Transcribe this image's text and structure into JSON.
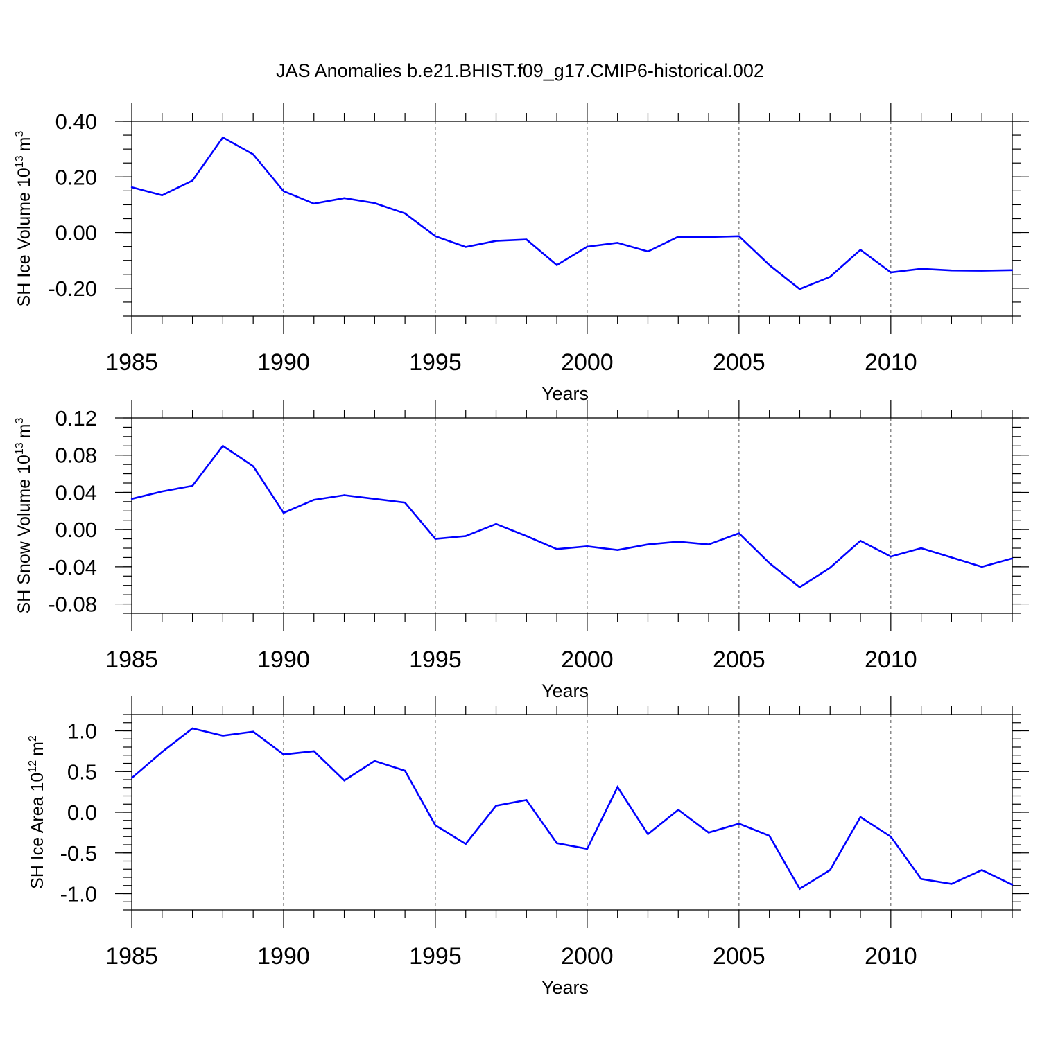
{
  "title": "JAS Anomalies b.e21.BHIST.f09_g17.CMIP6-historical.002",
  "colors": {
    "line": "#0000ff",
    "axis": "#000000",
    "grid": "#555555"
  },
  "chart_data": [
    {
      "type": "line",
      "title": "",
      "ylabel_main": "SH Ice Volume 10",
      "ylabel_exp": "13",
      "ylabel_unit": "m",
      "ylabel_unit_exp": "3",
      "xlabel": "Years",
      "xlim": [
        1985,
        2014
      ],
      "ylim": [
        -0.3,
        0.4
      ],
      "yticks": [
        -0.2,
        0.0,
        0.2,
        0.4
      ],
      "ytick_labels": [
        "-0.20",
        "0.00",
        "0.20",
        "0.40"
      ],
      "yminor_step": 0.05,
      "xticks": [
        1985,
        1990,
        1995,
        2000,
        2005,
        2010
      ],
      "xtick_labels": [
        "1985",
        "1990",
        "1995",
        "2000",
        "2005",
        "2010"
      ],
      "grid_x": [
        1990,
        1995,
        2000,
        2005,
        2010
      ],
      "series": [
        {
          "name": "SH Ice Volume",
          "x": [
            1985,
            1986,
            1987,
            1988,
            1989,
            1990,
            1991,
            1992,
            1993,
            1994,
            1995,
            1996,
            1997,
            1998,
            1999,
            2000,
            2001,
            2002,
            2003,
            2004,
            2005,
            2006,
            2007,
            2008,
            2009,
            2010,
            2011,
            2012,
            2013,
            2014
          ],
          "values": [
            0.163,
            0.134,
            0.187,
            0.342,
            0.281,
            0.149,
            0.104,
            0.124,
            0.106,
            0.069,
            -0.013,
            -0.052,
            -0.03,
            -0.025,
            -0.117,
            -0.051,
            -0.037,
            -0.068,
            -0.015,
            -0.016,
            -0.013,
            -0.117,
            -0.203,
            -0.159,
            -0.062,
            -0.143,
            -0.13,
            -0.136,
            -0.137,
            -0.135
          ]
        }
      ]
    },
    {
      "type": "line",
      "title": "",
      "ylabel_main": "SH Snow Volume 10",
      "ylabel_exp": "13",
      "ylabel_unit": "m",
      "ylabel_unit_exp": "3",
      "xlabel": "Years",
      "xlim": [
        1985,
        2014
      ],
      "ylim": [
        -0.09,
        0.12
      ],
      "yticks": [
        -0.08,
        -0.04,
        0.0,
        0.04,
        0.08,
        0.12
      ],
      "ytick_labels": [
        "-0.08",
        "-0.04",
        "0.00",
        "0.04",
        "0.08",
        "0.12"
      ],
      "yminor_step": 0.01,
      "xticks": [
        1985,
        1990,
        1995,
        2000,
        2005,
        2010
      ],
      "xtick_labels": [
        "1985",
        "1990",
        "1995",
        "2000",
        "2005",
        "2010"
      ],
      "grid_x": [
        1990,
        1995,
        2000,
        2005,
        2010
      ],
      "series": [
        {
          "name": "SH Snow Volume",
          "x": [
            1985,
            1986,
            1987,
            1988,
            1989,
            1990,
            1991,
            1992,
            1993,
            1994,
            1995,
            1996,
            1997,
            1998,
            1999,
            2000,
            2001,
            2002,
            2003,
            2004,
            2005,
            2006,
            2007,
            2008,
            2009,
            2010,
            2011,
            2012,
            2013,
            2014
          ],
          "values": [
            0.033,
            0.041,
            0.047,
            0.09,
            0.068,
            0.018,
            0.032,
            0.037,
            0.033,
            0.029,
            -0.01,
            -0.007,
            0.006,
            -0.007,
            -0.021,
            -0.018,
            -0.022,
            -0.016,
            -0.013,
            -0.016,
            -0.004,
            -0.036,
            -0.062,
            -0.041,
            -0.012,
            -0.029,
            -0.02,
            -0.03,
            -0.04,
            -0.031
          ]
        }
      ]
    },
    {
      "type": "line",
      "title": "",
      "ylabel_main": "SH Ice Area 10",
      "ylabel_exp": "12",
      "ylabel_unit": "m",
      "ylabel_unit_exp": "2",
      "xlabel": "Years",
      "xlim": [
        1985,
        2014
      ],
      "ylim": [
        -1.2,
        1.2
      ],
      "yticks": [
        -1.0,
        -0.5,
        0.0,
        0.5,
        1.0
      ],
      "ytick_labels": [
        "-1.0",
        "-0.5",
        "0.0",
        "0.5",
        "1.0"
      ],
      "yminor_step": 0.1,
      "xticks": [
        1985,
        1990,
        1995,
        2000,
        2005,
        2010
      ],
      "xtick_labels": [
        "1985",
        "1990",
        "1995",
        "2000",
        "2005",
        "2010"
      ],
      "grid_x": [
        1990,
        1995,
        2000,
        2005,
        2010
      ],
      "series": [
        {
          "name": "SH Ice Area",
          "x": [
            1985,
            1986,
            1987,
            1988,
            1989,
            1990,
            1991,
            1992,
            1993,
            1994,
            1995,
            1996,
            1997,
            1998,
            1999,
            2000,
            2001,
            2002,
            2003,
            2004,
            2005,
            2006,
            2007,
            2008,
            2009,
            2010,
            2011,
            2012,
            2013,
            2014
          ],
          "values": [
            0.42,
            0.74,
            1.03,
            0.94,
            0.99,
            0.71,
            0.75,
            0.39,
            0.63,
            0.51,
            -0.16,
            -0.39,
            0.08,
            0.15,
            -0.38,
            -0.45,
            0.31,
            -0.27,
            0.03,
            -0.25,
            -0.14,
            -0.29,
            -0.94,
            -0.71,
            -0.06,
            -0.3,
            -0.82,
            -0.88,
            -0.71,
            -0.89
          ]
        }
      ]
    }
  ]
}
